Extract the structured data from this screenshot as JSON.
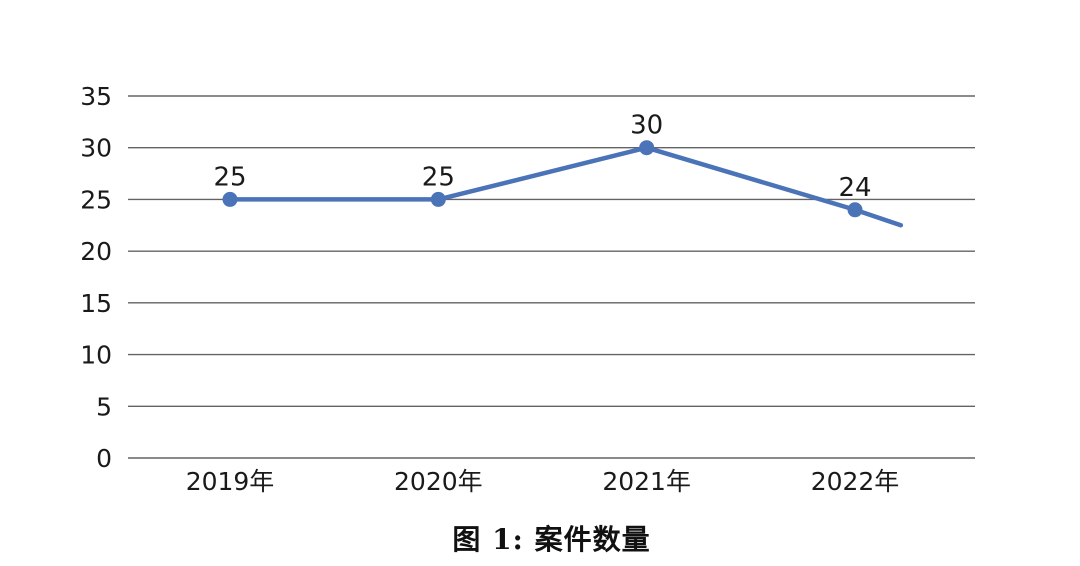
{
  "chart_data": {
    "type": "line",
    "title": "图 1: 案件数量",
    "categories": [
      "2019年",
      "2020年",
      "2021年",
      "2022年"
    ],
    "values": [
      25,
      25,
      30,
      24
    ],
    "data_labels": [
      "25",
      "25",
      "30",
      "24"
    ],
    "yticks": [
      0,
      5,
      10,
      15,
      20,
      25,
      30,
      35
    ],
    "ylim": [
      0,
      35
    ],
    "xlabel": "",
    "ylabel": "",
    "grid": true,
    "legend_position": "none",
    "trailing_segment": {
      "value": 22.5,
      "category_fraction": 0.22
    },
    "colors": {
      "line": "#4a73b8",
      "marker": "#4a73b8",
      "gridline": "#636363",
      "text": "#1a1a1a",
      "background": "#ffffff"
    }
  }
}
